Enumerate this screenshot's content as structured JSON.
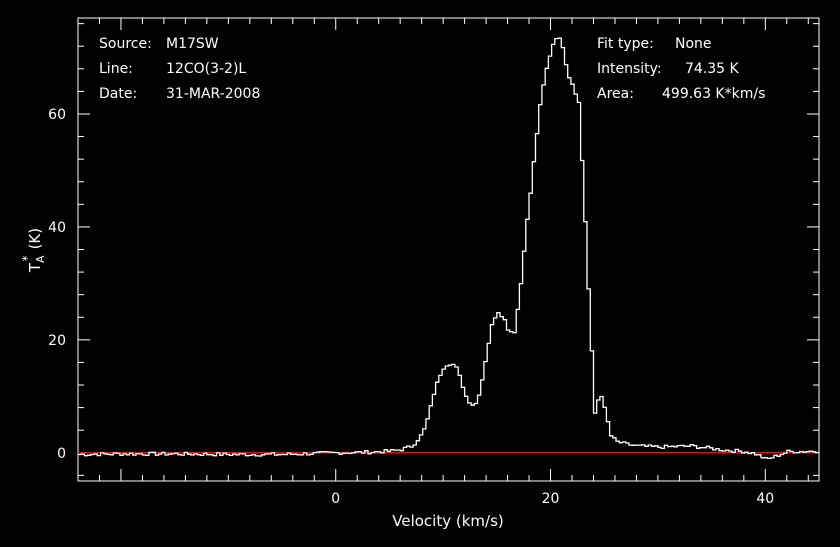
{
  "header_left": {
    "source_label": "Source:",
    "source_value": "M17SW",
    "line_label": "Line:",
    "line_value": "12CO(3-2)L",
    "date_label": "Date:",
    "date_value": "31-MAR-2008"
  },
  "header_right": {
    "fit_label": "Fit type:",
    "fit_value": "None",
    "intensity_label": "Intensity:",
    "intensity_value": "74.35 K",
    "area_label": "Area:",
    "area_value": "499.63 K*km/s"
  },
  "colors": {
    "background": "#000000",
    "spectrum": "#ffffff",
    "baseline": "#d01818",
    "axes": "#ffffff"
  },
  "chart_data": {
    "type": "line",
    "title": "",
    "xlabel": "Velocity (km/s)",
    "ylabel_main": "T",
    "ylabel_sub": "A",
    "ylabel_sup": "*",
    "ylabel_unit": "(K)",
    "xlim": [
      -24.0,
      45.0
    ],
    "ylim": [
      -5.0,
      77.0
    ],
    "xticks": [
      -20,
      0,
      20,
      40
    ],
    "xtick_labels": [
      "",
      "0",
      "20",
      "40"
    ],
    "yticks": [
      0,
      20,
      40,
      60
    ],
    "ytick_labels": [
      "0",
      "20",
      "40",
      "60"
    ],
    "baseline_y": 0,
    "series": [
      {
        "style": "steps",
        "x": [
          -24,
          -20,
          -15,
          -10,
          -5,
          0,
          3,
          5,
          6,
          7,
          8,
          8.5,
          9,
          9.5,
          10,
          10.5,
          11,
          11.5,
          12,
          12.5,
          13,
          13.5,
          14,
          14.5,
          15,
          15.5,
          16,
          16.5,
          17,
          17.5,
          18,
          18.5,
          19,
          19.5,
          20,
          20.5,
          21,
          21.5,
          22,
          22.5,
          23,
          23.5,
          24,
          24.5,
          25,
          25.5,
          26,
          27,
          28,
          30,
          33,
          36,
          38,
          39,
          40,
          42,
          45
        ],
        "y": [
          -0.3,
          -0.2,
          -0.2,
          -0.3,
          -0.3,
          0,
          0.1,
          0.3,
          0.6,
          1.2,
          3.5,
          6.5,
          10.5,
          13.5,
          15.5,
          15.8,
          15.5,
          13,
          10,
          8.5,
          8.8,
          13,
          18.5,
          23.5,
          25,
          24,
          21.5,
          21.5,
          28,
          38,
          46,
          55,
          63,
          68,
          72,
          74,
          72,
          67,
          65,
          62,
          45,
          25,
          7,
          11,
          7,
          3,
          2,
          1.5,
          1.2,
          1,
          1.2,
          0.5,
          0.2,
          -0.2,
          -1.2,
          0.2,
          0.3
        ]
      }
    ]
  }
}
